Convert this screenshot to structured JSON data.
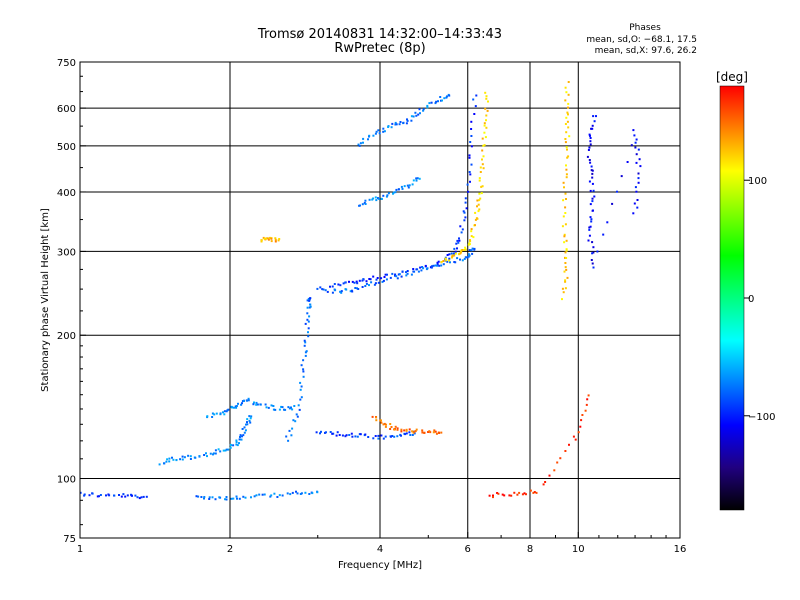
{
  "chart_data": {
    "type": "scatter",
    "title": "Tromsø 20140831 14:32:00–14:33:43",
    "subtitle": "RwPretec (8p)",
    "xlabel": "Frequency [MHz]",
    "ylabel": "Stationary phase Virtual Height [km]",
    "x_scale": "log",
    "y_scale": "log",
    "xlim": [
      1,
      16
    ],
    "ylim": [
      75,
      750
    ],
    "x_ticks": [
      1,
      2,
      4,
      6,
      8,
      10,
      16
    ],
    "x_tick_labels": [
      "1",
      "2",
      "4",
      "6",
      "8",
      "10",
      "16"
    ],
    "x_gridlines": [
      2,
      4,
      6,
      8,
      10
    ],
    "y_ticks": [
      75,
      100,
      200,
      300,
      400,
      500,
      600,
      750
    ],
    "y_tick_labels": [
      "75",
      "100",
      "200",
      "300",
      "400",
      "500",
      "600",
      "750"
    ],
    "y_gridlines": [
      100,
      200,
      300,
      400,
      500,
      600
    ],
    "grid": true,
    "info_title": "Phases",
    "info_lines": [
      "mean, sd,O: −68.1, 17.5",
      "mean, sd,X:  97.6, 26.2"
    ],
    "colorbar": {
      "label": "[deg]",
      "range": [
        -180,
        180
      ],
      "ticks": [
        100,
        0,
        -100
      ],
      "tick_labels": [
        "100",
        "0",
        "−100"
      ],
      "colors": [
        "#ff0000",
        "#ff8000",
        "#ffff00",
        "#80ff00",
        "#00ff00",
        "#00ff80",
        "#00ffff",
        "#0080ff",
        "#0000ff",
        "#200080",
        "#000000"
      ]
    },
    "traces": [
      {
        "name": "",
        "phase": -95,
        "points": [
          [
            1.0,
            93
          ],
          [
            1.12,
            92
          ],
          [
            1.25,
            92
          ],
          [
            1.35,
            91
          ]
        ]
      },
      {
        "name": "",
        "phase": -75,
        "points": [
          [
            1.7,
            92
          ],
          [
            1.9,
            91
          ],
          [
            2.1,
            91
          ],
          [
            2.4,
            92
          ],
          [
            2.7,
            93
          ],
          [
            3.0,
            93
          ]
        ]
      },
      {
        "name": "",
        "phase": -70,
        "points": [
          [
            1.45,
            108
          ],
          [
            1.55,
            110
          ],
          [
            1.7,
            111
          ],
          [
            1.85,
            113
          ],
          [
            2.0,
            116
          ],
          [
            2.1,
            120
          ],
          [
            2.15,
            128
          ],
          [
            2.2,
            135
          ]
        ]
      },
      {
        "name": "",
        "phase": -70,
        "points": [
          [
            1.8,
            135
          ],
          [
            1.95,
            138
          ],
          [
            2.05,
            142
          ],
          [
            2.15,
            146
          ],
          [
            2.3,
            143
          ],
          [
            2.5,
            140
          ],
          [
            2.7,
            141
          ]
        ]
      },
      {
        "name": "",
        "phase": -80,
        "points": [
          [
            2.6,
            120
          ],
          [
            2.75,
            140
          ],
          [
            2.8,
            170
          ],
          [
            2.85,
            200
          ],
          [
            2.88,
            230
          ],
          [
            2.9,
            240
          ]
        ]
      },
      {
        "name": "",
        "phase": -88,
        "points": [
          [
            3.0,
            125
          ],
          [
            3.3,
            124
          ],
          [
            3.6,
            123
          ],
          [
            4.0,
            122
          ],
          [
            4.4,
            123
          ],
          [
            4.7,
            125
          ]
        ]
      },
      {
        "name": "",
        "phase": 150,
        "points": [
          [
            3.9,
            135
          ],
          [
            4.1,
            130
          ],
          [
            4.3,
            127
          ],
          [
            4.6,
            126
          ],
          [
            5.0,
            125
          ],
          [
            5.3,
            125
          ]
        ]
      },
      {
        "name": "",
        "phase": -95,
        "points": [
          [
            3.2,
            255
          ],
          [
            3.5,
            258
          ],
          [
            3.8,
            262
          ],
          [
            4.2,
            268
          ],
          [
            4.7,
            275
          ],
          [
            5.2,
            283
          ],
          [
            5.6,
            295
          ],
          [
            5.8,
            320
          ],
          [
            5.95,
            380
          ],
          [
            6.1,
            480
          ],
          [
            6.2,
            640
          ]
        ]
      },
      {
        "name": "",
        "phase": -80,
        "points": [
          [
            3.0,
            250
          ],
          [
            3.3,
            247
          ],
          [
            3.6,
            250
          ],
          [
            4.0,
            260
          ],
          [
            4.5,
            268
          ],
          [
            5.0,
            278
          ],
          [
            5.5,
            285
          ],
          [
            6.0,
            292
          ],
          [
            6.2,
            305
          ]
        ]
      },
      {
        "name": "",
        "phase": 120,
        "points": [
          [
            5.3,
            285
          ],
          [
            5.6,
            292
          ],
          [
            5.9,
            300
          ],
          [
            6.1,
            320
          ],
          [
            6.25,
            360
          ],
          [
            6.35,
            400
          ],
          [
            6.45,
            470
          ],
          [
            6.5,
            550
          ],
          [
            6.55,
            650
          ]
        ]
      },
      {
        "name": "",
        "phase": -70,
        "points": [
          [
            3.6,
            375
          ],
          [
            3.9,
            385
          ],
          [
            4.2,
            395
          ],
          [
            4.5,
            410
          ],
          [
            4.8,
            430
          ]
        ]
      },
      {
        "name": "",
        "phase": -75,
        "points": [
          [
            3.6,
            500
          ],
          [
            3.9,
            530
          ],
          [
            4.2,
            550
          ],
          [
            4.5,
            560
          ],
          [
            4.8,
            590
          ],
          [
            5.2,
            620
          ],
          [
            5.5,
            640
          ]
        ]
      },
      {
        "name": "",
        "phase": 130,
        "points": [
          [
            2.3,
            317
          ],
          [
            2.4,
            318
          ],
          [
            2.5,
            316
          ]
        ]
      },
      {
        "name": "",
        "phase": 120,
        "points": [
          [
            9.5,
            680
          ],
          [
            9.5,
            570
          ],
          [
            9.5,
            490
          ],
          [
            9.4,
            400
          ],
          [
            9.4,
            320
          ],
          [
            9.5,
            280
          ],
          [
            9.3,
            240
          ]
        ]
      },
      {
        "name": "",
        "phase": -110,
        "points": [
          [
            10.8,
            580
          ],
          [
            10.5,
            510
          ],
          [
            10.6,
            440
          ],
          [
            10.7,
            380
          ],
          [
            10.5,
            330
          ],
          [
            10.8,
            280
          ],
          [
            13.0,
            540
          ],
          [
            13.2,
            450
          ],
          [
            13.0,
            360
          ]
        ]
      },
      {
        "name": "",
        "phase": 170,
        "points": [
          [
            6.6,
            92
          ],
          [
            7.4,
            93
          ],
          [
            8.3,
            94
          ],
          [
            9.8,
            120
          ],
          [
            10.5,
            150
          ]
        ]
      }
    ]
  }
}
